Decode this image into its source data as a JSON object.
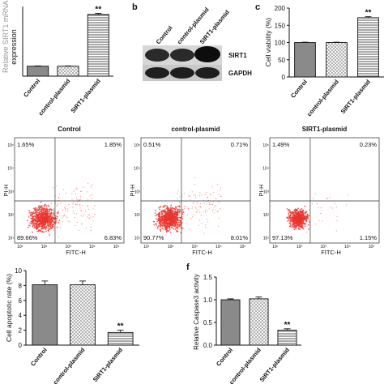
{
  "panels": {
    "a": {
      "letter": "",
      "ylabel": "expression",
      "ylabel_cut": "Relative SIRT1 mRNA",
      "categories": [
        "Control",
        "control-plasmid",
        "SIRT1-plasmid"
      ],
      "values": [
        1.0,
        1.0,
        6.2
      ],
      "errors": [
        0.03,
        0.03,
        0.1
      ],
      "ylim": [
        0,
        7
      ],
      "sig": [
        "",
        "",
        "**"
      ]
    },
    "b": {
      "letter": "b",
      "lanes": [
        "Control",
        "control-plasmid",
        "SIRT1-plasmid"
      ],
      "bands": [
        "SIRT1",
        "GAPDH"
      ]
    },
    "c": {
      "letter": "c",
      "ylabel": "Cell viability (%)",
      "yticks": [
        "0",
        "50",
        "100",
        "150",
        "200"
      ],
      "categories": [
        "Control",
        "control-plasmid",
        "SIRT1-plasmid"
      ],
      "values": [
        100,
        100,
        172
      ],
      "errors": [
        1,
        1,
        3
      ],
      "ylim": [
        0,
        200
      ],
      "sig": [
        "",
        "",
        "**"
      ]
    },
    "flow": [
      {
        "title": "Control",
        "ul": "1.65%",
        "ur": "1.85%",
        "ll": "89.66%",
        "lr": "6.83%"
      },
      {
        "title": "control-plasmid",
        "ul": "0.51%",
        "ur": "0.71%",
        "ll": "90.77%",
        "lr": "8.01%"
      },
      {
        "title": "SIRT1-plasmid",
        "ul": "1.49%",
        "ur": "0.23%",
        "ll": "97.13%",
        "lr": "1.15%"
      }
    ],
    "flow_axes": {
      "xlabel": "FITC-H",
      "ylabel": "PI-H",
      "xticks": [
        "10¹",
        "10²",
        "10³",
        "10⁴",
        "10⁵"
      ],
      "yticks": [
        "10¹",
        "10²",
        "10³",
        "10⁴",
        "10⁵"
      ]
    },
    "e": {
      "letter": "",
      "ylabel": "Cell apoptotic rate (%)",
      "yticks": [
        "0",
        "2",
        "4",
        "6",
        "8",
        "10"
      ],
      "categories": [
        "Control",
        "control-plasmid",
        "SIRT1-plasmid"
      ],
      "values": [
        8.1,
        8.1,
        1.7
      ],
      "errors": [
        0.5,
        0.5,
        0.3
      ],
      "ylim": [
        0,
        10
      ],
      "sig": [
        "",
        "",
        "**"
      ]
    },
    "f": {
      "letter": "f",
      "ylabel": "Relative Caspase3 activity",
      "yticks": [
        "0.0",
        "0.5",
        "1.0",
        "1.5"
      ],
      "categories": [
        "Control",
        "control-plasmid",
        "SIRT1-plasmid"
      ],
      "values": [
        1.0,
        1.02,
        0.33
      ],
      "errors": [
        0.02,
        0.04,
        0.03
      ],
      "ylim": [
        0,
        1.5
      ],
      "sig": [
        "",
        "",
        "**"
      ]
    }
  },
  "chart_data": [
    {
      "type": "bar",
      "title": "",
      "ylabel": "Relative SIRT1 mRNA expression",
      "categories": [
        "Control",
        "control-plasmid",
        "SIRT1-plasmid"
      ],
      "values": [
        1.0,
        1.0,
        6.2
      ],
      "ylim": [
        0,
        7
      ]
    },
    {
      "type": "bar",
      "title": "",
      "ylabel": "Cell viability (%)",
      "categories": [
        "Control",
        "control-plasmid",
        "SIRT1-plasmid"
      ],
      "values": [
        100,
        100,
        172
      ],
      "ylim": [
        0,
        200
      ]
    },
    {
      "type": "scatter",
      "title": "Control",
      "xlabel": "FITC-H",
      "ylabel": "PI-H",
      "quadrants": {
        "ul": 1.65,
        "ur": 1.85,
        "ll": 89.66,
        "lr": 6.83
      }
    },
    {
      "type": "scatter",
      "title": "control-plasmid",
      "xlabel": "FITC-H",
      "ylabel": "PI-H",
      "quadrants": {
        "ul": 0.51,
        "ur": 0.71,
        "ll": 90.77,
        "lr": 8.01
      }
    },
    {
      "type": "scatter",
      "title": "SIRT1-plasmid",
      "xlabel": "FITC-H",
      "ylabel": "PI-H",
      "quadrants": {
        "ul": 1.49,
        "ur": 0.23,
        "ll": 97.13,
        "lr": 1.15
      }
    },
    {
      "type": "bar",
      "title": "",
      "ylabel": "Cell apoptotic rate (%)",
      "categories": [
        "Control",
        "control-plasmid",
        "SIRT1-plasmid"
      ],
      "values": [
        8.1,
        8.1,
        1.7
      ],
      "ylim": [
        0,
        10
      ]
    },
    {
      "type": "bar",
      "title": "",
      "ylabel": "Relative Caspase3 activity",
      "categories": [
        "Control",
        "control-plasmid",
        "SIRT1-plasmid"
      ],
      "values": [
        1.0,
        1.02,
        0.33
      ],
      "ylim": [
        0,
        1.5
      ]
    }
  ]
}
